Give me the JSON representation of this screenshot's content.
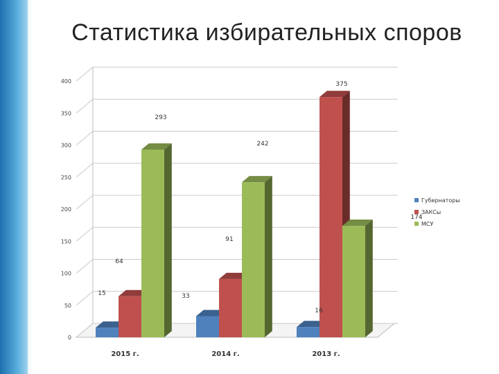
{
  "slide": {
    "title": "Статистика избирательных споров"
  },
  "chart_data": {
    "type": "bar",
    "categories": [
      "2015 г.",
      "2014 г.",
      "2013 г."
    ],
    "series": [
      {
        "name": "Губернаторы",
        "values": [
          15,
          33,
          16
        ],
        "color": "#4f81bd"
      },
      {
        "name": "ЗАКСы",
        "values": [
          64,
          91,
          375
        ],
        "color": "#c0504d"
      },
      {
        "name": "МСУ",
        "values": [
          293,
          242,
          174
        ],
        "color": "#9bbb59"
      }
    ],
    "y_ticks": [
      "0",
      "50",
      "100",
      "150",
      "200",
      "250",
      "300",
      "350",
      "400"
    ],
    "ylim": [
      0,
      400
    ],
    "grid": true,
    "legend": "right",
    "style": "3d-clustered"
  }
}
